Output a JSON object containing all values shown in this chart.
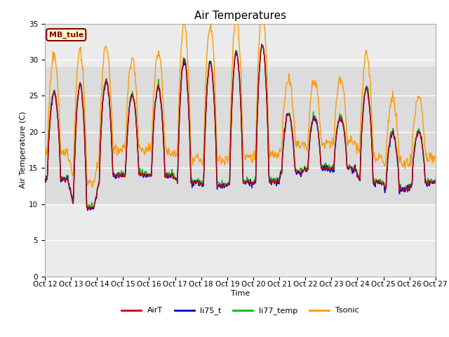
{
  "title": "Air Temperatures",
  "xlabel": "Time",
  "ylabel": "Air Temperature (C)",
  "ylim": [
    0,
    35
  ],
  "yticks": [
    0,
    5,
    10,
    15,
    20,
    25,
    30,
    35
  ],
  "x_labels": [
    "Oct 12",
    "Oct 13",
    "Oct 14",
    "Oct 15",
    "Oct 16",
    "Oct 17",
    "Oct 18",
    "Oct 19",
    "Oct 20",
    "Oct 21",
    "Oct 22",
    "Oct 23",
    "Oct 24",
    "Oct 25",
    "Oct 26",
    "Oct 27"
  ],
  "annotation_text": "MB_tule",
  "annotation_bg": "#ffffcc",
  "annotation_border": "#8b0000",
  "annotation_text_color": "#8b0000",
  "colors": {
    "AirT": "#cc0000",
    "li75_t": "#0000cc",
    "li77_temp": "#00bb00",
    "Tsonic": "#ff9900"
  },
  "hspan_low": 10,
  "hspan_high": 29,
  "hspan_color": "#dcdcdc",
  "plot_bg_color": "#ebebeb",
  "grid_color": "#ffffff",
  "title_fontsize": 11,
  "label_fontsize": 8,
  "tick_fontsize": 7.5,
  "annot_fontsize": 8,
  "legend_fontsize": 8
}
